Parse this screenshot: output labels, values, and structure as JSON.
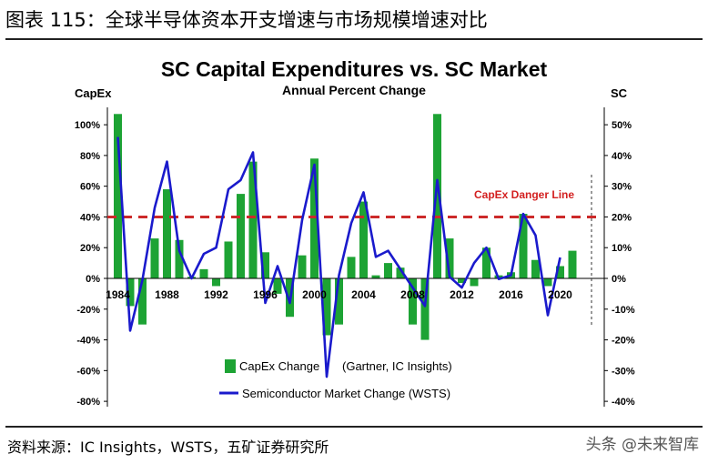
{
  "figure_title": "图表 115：全球半导体资本开支增速与市场规模增速对比",
  "source_text": "资料来源：IC Insights，WSTS，五矿证券研究所",
  "watermark": "头条 @未来智库",
  "colors": {
    "bars": "#1da334",
    "line": "#1a1acc",
    "danger": "#cc2a2a",
    "danger_label": "#d32020"
  },
  "chart_data": {
    "type": "bar+line",
    "title": "SC Capital Expenditures vs. SC Market",
    "subtitle": "Annual Percent Change",
    "left_axis_label": "CapEx",
    "right_axis_label": "SC",
    "left_ylim": [
      -80,
      110
    ],
    "left_ticks": [
      "100%",
      "80%",
      "60%",
      "40%",
      "20%",
      "0%",
      "-20%",
      "-40%",
      "-60%",
      "-80%"
    ],
    "left_tick_values": [
      100,
      80,
      60,
      40,
      20,
      0,
      -20,
      -40,
      -60,
      -80
    ],
    "right_ylim": [
      -40,
      55
    ],
    "right_ticks": [
      "50%",
      "40%",
      "30%",
      "20%",
      "10%",
      "0%",
      "-10%",
      "-20%",
      "-30%",
      "-40%"
    ],
    "right_tick_values": [
      50,
      40,
      30,
      20,
      10,
      0,
      -10,
      -20,
      -30,
      -40
    ],
    "x_tick_labels": [
      "1984",
      "1988",
      "1992",
      "1996",
      "2000",
      "2004",
      "2008",
      "2012",
      "2016",
      "2020"
    ],
    "x_tick_years": [
      1984,
      1988,
      1992,
      1996,
      2000,
      2004,
      2008,
      2012,
      2016,
      2020
    ],
    "years": [
      1984,
      1985,
      1986,
      1987,
      1988,
      1989,
      1990,
      1991,
      1992,
      1993,
      1994,
      1995,
      1996,
      1997,
      1998,
      1999,
      2000,
      2001,
      2002,
      2003,
      2004,
      2005,
      2006,
      2007,
      2008,
      2009,
      2010,
      2011,
      2012,
      2013,
      2014,
      2015,
      2016,
      2017,
      2018,
      2019,
      2020,
      2021
    ],
    "series": [
      {
        "name": "CapEx Change (Gartner, IC Insights)",
        "kind": "bar",
        "axis": "left",
        "values": [
          107,
          -18,
          -30,
          26,
          58,
          25,
          1,
          6,
          -5,
          24,
          55,
          76,
          17,
          -10,
          -25,
          15,
          78,
          -37,
          -30,
          14,
          50,
          2,
          10,
          7,
          -30,
          -40,
          107,
          26,
          -3,
          -5,
          20,
          2,
          4,
          42,
          12,
          -5,
          8,
          18
        ]
      },
      {
        "name": "Semiconductor Market Change (WSTS)",
        "kind": "line",
        "axis": "right",
        "values": [
          46,
          -17,
          -0.5,
          23,
          38,
          9,
          0,
          8,
          10,
          29,
          32,
          41,
          -8,
          4,
          -8,
          19,
          37,
          -32,
          1,
          18,
          28,
          7,
          9,
          3,
          -3,
          -9,
          32,
          0.5,
          -3,
          5,
          10,
          -0.2,
          1,
          21,
          14,
          -12,
          6.8
        ]
      }
    ],
    "danger_line": {
      "label": "CapEx Danger Line",
      "value": 40
    },
    "legend": [
      {
        "label": "CapEx Change",
        "source": "(Gartner, IC Insights)"
      },
      {
        "label": "Semiconductor Market Change (WSTS)"
      }
    ]
  }
}
